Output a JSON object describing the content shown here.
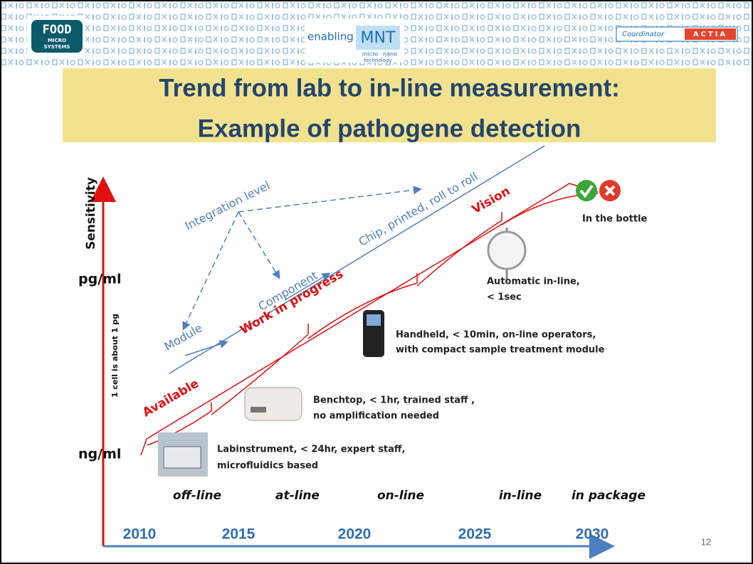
{
  "header": {
    "logo_food": {
      "title": "FOOD",
      "sub1": "MICRO",
      "sub2": "SYSTEMS"
    },
    "logo_mnt": {
      "prefix": "enabling",
      "mark": "MNT",
      "sub1": "micro",
      "sub2": "nano",
      "sub3": "technology"
    },
    "coordinator": {
      "label": "Coordinator",
      "name": "ACTIA"
    }
  },
  "title": {
    "line1": "Trend from lab to in-line measurement:",
    "line2": "Example of pathogene detection"
  },
  "diagram": {
    "y_axis_label": "Sensitivity",
    "levels": [
      "pg/ml",
      "ng/ml"
    ],
    "note": "1 cell is about 1 pg",
    "integration": {
      "label": "Integration level",
      "steps": [
        "Module",
        "Component",
        "Chip, printed, roll to roll"
      ]
    },
    "status": [
      "Available",
      "Work in progress",
      "Vision"
    ],
    "devices": [
      {
        "lines": [
          "Labinstrument, < 24hr, expert  staff,",
          "microfluidics based"
        ]
      },
      {
        "lines": [
          "Benchtop, < 1hr, trained staff ,",
          "no amplification needed"
        ]
      },
      {
        "lines": [
          "Handheld, < 10min, on-line operators,",
          "with compact sample treatment module"
        ]
      },
      {
        "lines": [
          "Automatic in-line,",
          "< 1sec"
        ]
      },
      {
        "lines": [
          "In the bottle"
        ]
      }
    ],
    "stages": [
      "off-line",
      "at-line",
      "on-line",
      "in-line",
      "in package"
    ],
    "years": [
      2010,
      2015,
      2020,
      2025,
      2030
    ]
  },
  "page_number": 12
}
